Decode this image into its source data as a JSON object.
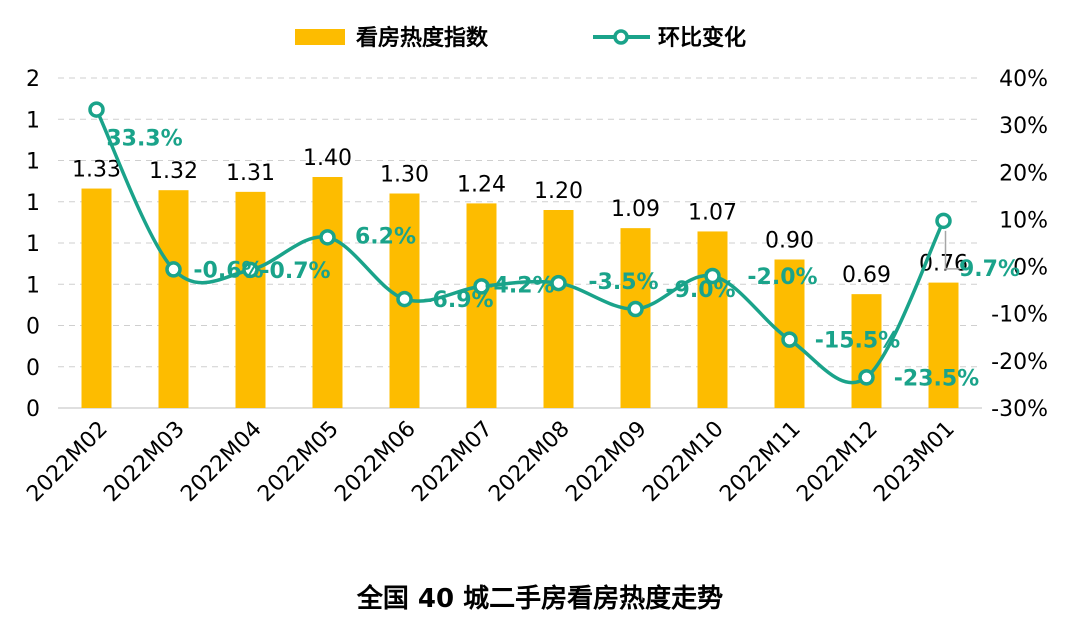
{
  "chart_data": {
    "type": "bar+line",
    "title": "全国 40 城二手房看房热度走势",
    "categories": [
      "2022M02",
      "2022M03",
      "2022M04",
      "2022M05",
      "2022M06",
      "2022M07",
      "2022M08",
      "2022M09",
      "2022M10",
      "2022M11",
      "2022M12",
      "2023M01"
    ],
    "series": [
      {
        "name": "看房热度指数",
        "type": "bar",
        "axis": "left",
        "values": [
          1.33,
          1.32,
          1.31,
          1.4,
          1.3,
          1.24,
          1.2,
          1.09,
          1.07,
          0.9,
          0.69,
          0.76
        ],
        "labels": [
          "1.33",
          "1.32",
          "1.31",
          "1.40",
          "1.30",
          "1.24",
          "1.20",
          "1.09",
          "1.07",
          "0.90",
          "0.69",
          "0.76"
        ],
        "color": "#fdbc00"
      },
      {
        "name": "环比变化",
        "type": "line",
        "axis": "right",
        "values": [
          33.3,
          -0.6,
          -0.7,
          6.2,
          -6.9,
          -4.2,
          -3.5,
          -9.0,
          -2.0,
          -15.5,
          -23.5,
          9.7
        ],
        "labels": [
          "33.3%",
          "-0.6%",
          "-0.7%",
          "6.2%",
          "-6.9%",
          "-4.2%",
          "-3.5%",
          "-9.0%",
          "-2.0%",
          "-15.5%",
          "-23.5%",
          "9.7%"
        ],
        "color": "#1aa38a"
      }
    ],
    "left_axis": {
      "range": [
        0,
        2
      ],
      "tick_labels": [
        "0",
        "0",
        "0",
        "1",
        "1",
        "1",
        "1",
        "1",
        "2"
      ]
    },
    "right_axis": {
      "range": [
        -30,
        40
      ],
      "tick_labels": [
        "-30%",
        "-20%",
        "-10%",
        "0%",
        "10%",
        "20%",
        "30%",
        "40%"
      ]
    },
    "grid": "horizontal-dashed",
    "legend_position": "top-center"
  }
}
